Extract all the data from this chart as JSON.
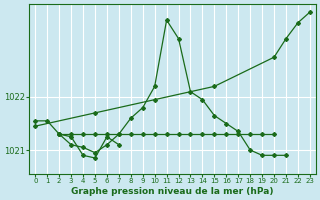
{
  "bg_color": "#cce8f0",
  "grid_color": "#ffffff",
  "line_color": "#1a6b1a",
  "title": "Graphe pression niveau de la mer (hPa)",
  "xlim": [
    -0.5,
    23.5
  ],
  "ylim": [
    1020.55,
    1023.75
  ],
  "yticks": [
    1021,
    1022
  ],
  "xticks": [
    0,
    1,
    2,
    3,
    4,
    5,
    6,
    7,
    8,
    9,
    10,
    11,
    12,
    13,
    14,
    15,
    16,
    17,
    18,
    19,
    20,
    21,
    22,
    23
  ],
  "series": [
    {
      "x": [
        0,
        1,
        2,
        3,
        4,
        5,
        6,
        7,
        8,
        9,
        10,
        11,
        12,
        13,
        14,
        15,
        16,
        17,
        18,
        19,
        20,
        21
      ],
      "y": [
        1021.55,
        1021.55,
        1021.3,
        1021.1,
        1021.05,
        1020.95,
        1021.1,
        1021.3,
        1021.6,
        1021.8,
        1022.2,
        1023.45,
        1023.1,
        1022.1,
        1021.95,
        1021.65,
        1021.5,
        1021.35,
        1021.0,
        1020.9,
        1020.9,
        1020.9
      ]
    },
    {
      "x": [
        2,
        3,
        4,
        5,
        6,
        7
      ],
      "y": [
        1021.3,
        1021.25,
        1020.9,
        1020.85,
        1021.25,
        1021.1
      ]
    },
    {
      "x": [
        2,
        3,
        4,
        5,
        6,
        7,
        8,
        9,
        10,
        11,
        12,
        13,
        14,
        15,
        16,
        17,
        18,
        19,
        20
      ],
      "y": [
        1021.3,
        1021.3,
        1021.3,
        1021.3,
        1021.3,
        1021.3,
        1021.3,
        1021.3,
        1021.3,
        1021.3,
        1021.3,
        1021.3,
        1021.3,
        1021.3,
        1021.3,
        1021.3,
        1021.3,
        1021.3,
        1021.3
      ]
    },
    {
      "x": [
        0,
        5,
        10,
        15,
        20,
        21,
        22,
        23
      ],
      "y": [
        1021.45,
        1021.7,
        1021.95,
        1022.2,
        1022.75,
        1023.1,
        1023.4,
        1023.6
      ]
    }
  ]
}
